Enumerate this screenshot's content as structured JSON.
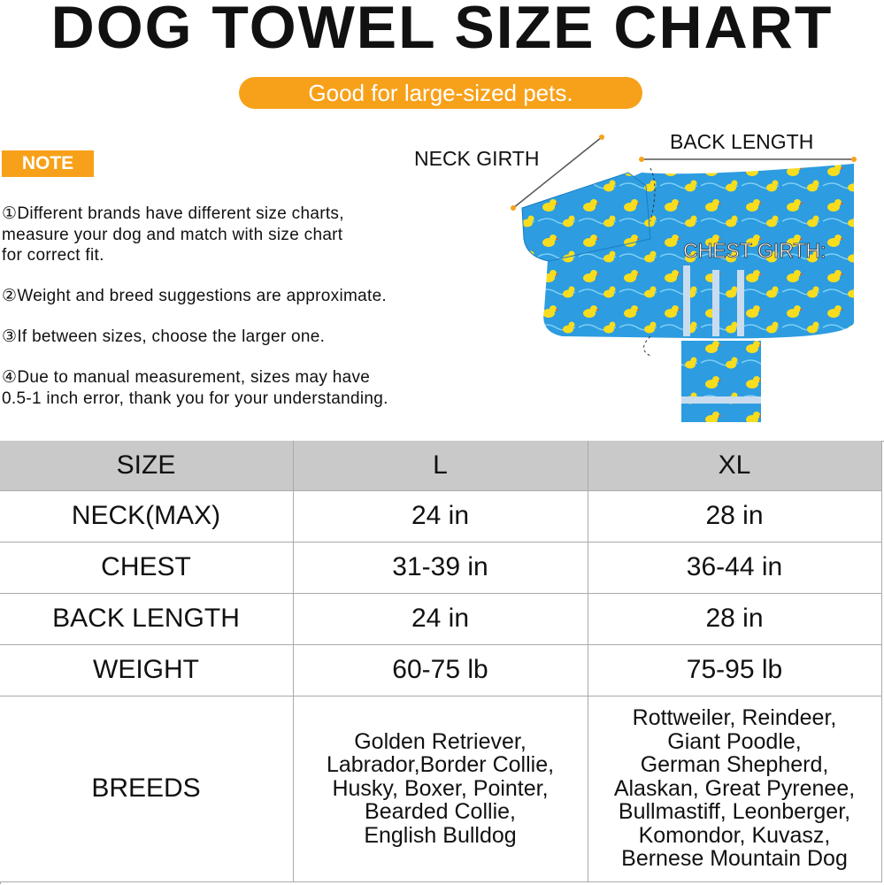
{
  "header": {
    "title": "DOG TOWEL SIZE CHART",
    "subtitle": "Good for large-sized pets."
  },
  "note": {
    "label": "NOTE",
    "items": [
      [
        "①Different brands have different size charts,",
        "measure your dog and match with size chart",
        "for correct fit."
      ],
      [
        "②Weight and breed suggestions are approximate."
      ],
      [
        "③If between sizes, choose the larger one."
      ],
      [
        "④Due to manual measurement, sizes may have",
        "0.5-1 inch error, thank you for your understanding."
      ]
    ]
  },
  "diagram": {
    "labels": [
      "NECK GIRTH",
      "BACK LENGTH",
      "CHEST GIRTH:"
    ]
  },
  "table": {
    "header": [
      "SIZE",
      "L",
      "XL"
    ],
    "rows": [
      [
        "NECK(MAX)",
        "24 in",
        "28 in"
      ],
      [
        "CHEST",
        "31-39 in",
        "36-44 in"
      ],
      [
        "BACK LENGTH",
        "24 in",
        "28 in"
      ],
      [
        "WEIGHT",
        "60-75 lb",
        "75-95 lb"
      ],
      [
        "BREEDS",
        [
          "Golden Retriever,",
          "Labrador,Border Collie,",
          "Husky, Boxer, Pointer,",
          "Bearded Collie,",
          "English Bulldog"
        ],
        [
          "Rottweiler, Reindeer,",
          "Giant Poodle,",
          "German Shepherd,",
          "Alaskan, Great Pyrenee,",
          "Bullmastiff, Leonberger,",
          "Komondor, Kuvasz,",
          "Bernese Mountain Dog"
        ]
      ]
    ]
  }
}
